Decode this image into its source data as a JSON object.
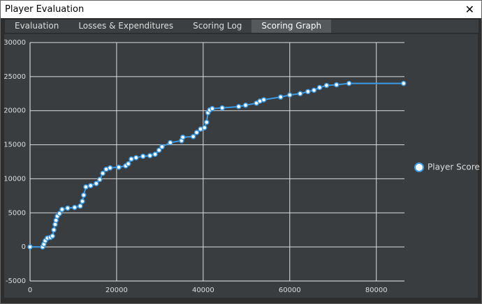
{
  "window": {
    "title": "Player Evaluation",
    "tabs": [
      "Evaluation",
      "Losses & Expenditures",
      "Scoring Log",
      "Scoring Graph"
    ],
    "selected_tab": 3
  },
  "chart_data": {
    "type": "line",
    "legend": "right",
    "grid": true,
    "xlim": [
      0,
      86500
    ],
    "ylim": [
      -5000,
      30000
    ],
    "xticks": [
      0,
      20000,
      40000,
      60000,
      80000
    ],
    "yticks": [
      -5000,
      0,
      5000,
      10000,
      15000,
      20000,
      25000,
      30000
    ],
    "x": [
      0,
      2900,
      3200,
      3500,
      4000,
      4700,
      5200,
      5500,
      5800,
      6000,
      6300,
      6800,
      7400,
      8700,
      10300,
      11600,
      12100,
      12400,
      12900,
      14000,
      15300,
      16100,
      16800,
      17600,
      18500,
      20500,
      22100,
      22700,
      23400,
      24500,
      26100,
      27700,
      28900,
      29800,
      30500,
      32400,
      35000,
      35300,
      37700,
      38500,
      39400,
      40300,
      40800,
      41100,
      41500,
      42100,
      44400,
      48200,
      49800,
      52300,
      53100,
      54000,
      57900,
      60000,
      62400,
      64200,
      65600,
      66900,
      68500,
      70800,
      73700,
      86300
    ],
    "series": [
      {
        "name": "Player Score",
        "color": "#3a9be8",
        "values": [
          0,
          0,
          400,
          900,
          1300,
          1400,
          1600,
          2500,
          3300,
          3900,
          4500,
          4900,
          5500,
          5700,
          5800,
          6000,
          6700,
          7600,
          8800,
          9000,
          9300,
          9900,
          10800,
          11400,
          11600,
          11700,
          11900,
          12200,
          12900,
          13100,
          13300,
          13400,
          13600,
          14200,
          14700,
          15300,
          15600,
          16100,
          16200,
          16800,
          17300,
          17500,
          18300,
          19700,
          20100,
          20300,
          20400,
          20600,
          20800,
          21100,
          21400,
          21600,
          22000,
          22300,
          22500,
          22800,
          23000,
          23400,
          23700,
          23800,
          24000,
          24000
        ]
      }
    ]
  }
}
